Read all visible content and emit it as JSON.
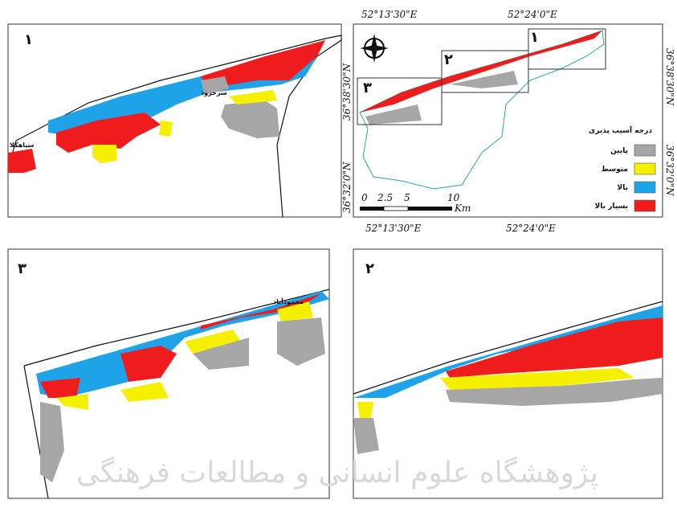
{
  "panels": [
    {
      "number": "۱",
      "places": [
        "سرخرود",
        "سیاهکلا"
      ]
    },
    {
      "number": "۲",
      "places": []
    },
    {
      "number": "۳",
      "places": [
        "محمودآباد"
      ]
    }
  ],
  "index_map": {
    "top_labels": [
      "52°13'30\"E",
      "52°24'0\"E"
    ],
    "bottom_labels": [
      "52°13'30\"E",
      "52°24'0\"E"
    ],
    "left_labels": [
      "36°38'30\"N",
      "36°32'0\"N"
    ],
    "right_labels": [
      "36°38'30\"N",
      "36°32'0\"N"
    ],
    "box_labels": [
      "۱",
      "۲",
      "۳"
    ],
    "scale": [
      "0",
      "2.5",
      "5",
      "10",
      "Km"
    ]
  },
  "legend": {
    "title": "درجه آسیب پذیری",
    "items": [
      {
        "label": "پایین",
        "color": "#a6a6a6"
      },
      {
        "label": "متوسط",
        "color": "#f5f000"
      },
      {
        "label": "بالا",
        "color": "#1fa3e8"
      },
      {
        "label": "بسیار بالا",
        "color": "#ee1c1c"
      }
    ]
  },
  "watermark": "پژوهشگاه علوم انسانی و مطالعات فرهنگی"
}
